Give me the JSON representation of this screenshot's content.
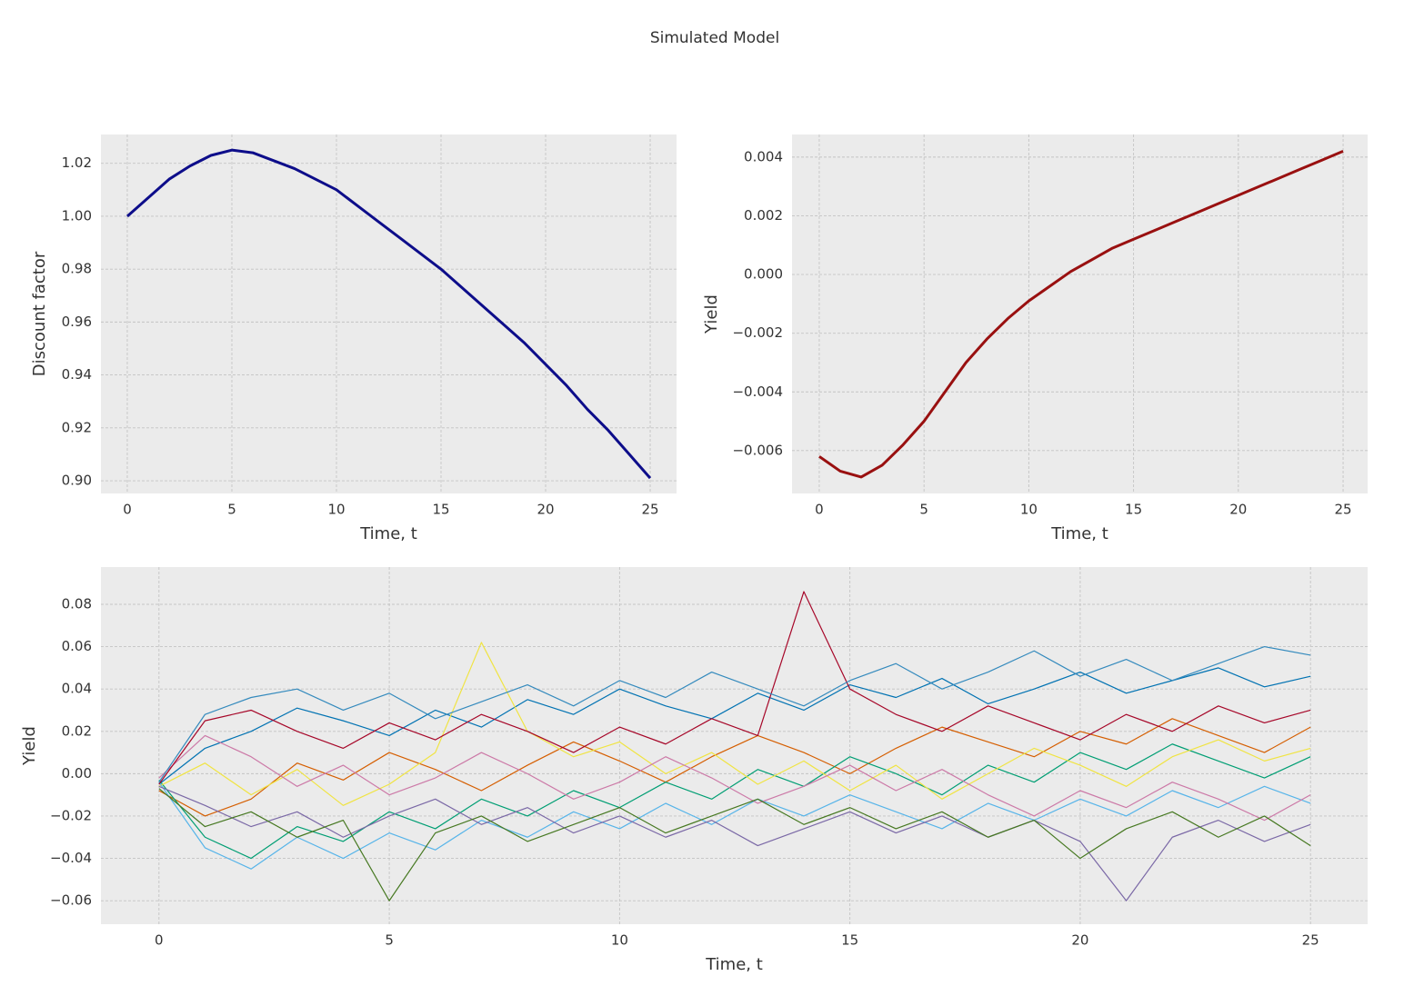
{
  "title": "Simulated Model",
  "chart_data": [
    {
      "type": "line",
      "xlabel": "Time, t",
      "ylabel": "Discount factor",
      "x": [
        0,
        1,
        2,
        3,
        4,
        5,
        6,
        7,
        8,
        9,
        10,
        11,
        12,
        13,
        14,
        15,
        16,
        17,
        18,
        19,
        20,
        21,
        22,
        23,
        24,
        25
      ],
      "values": [
        1.0,
        1.007,
        1.014,
        1.019,
        1.023,
        1.025,
        1.024,
        1.021,
        1.018,
        1.014,
        1.01,
        1.004,
        0.998,
        0.992,
        0.986,
        0.98,
        0.973,
        0.966,
        0.959,
        0.952,
        0.944,
        0.936,
        0.927,
        0.919,
        0.91,
        0.901
      ],
      "color": "#0d0d8a",
      "grid": true,
      "xlim": [
        -1.26,
        26.26
      ],
      "xticks": [
        0,
        5,
        10,
        15,
        20,
        25
      ],
      "ylim": [
        0.8952,
        1.0309
      ],
      "yticks": [
        {
          "value": 0.9,
          "label": "0.90"
        },
        0.92,
        0.94,
        0.96,
        0.98,
        {
          "value": 1.0,
          "label": "1.00"
        },
        1.02
      ]
    },
    {
      "type": "line",
      "xlabel": "Time, t",
      "ylabel": "Yield",
      "x": [
        0,
        1,
        2,
        3,
        4,
        5,
        6,
        7,
        8,
        9,
        10,
        11,
        12,
        13,
        14,
        15,
        16,
        17,
        18,
        19,
        20,
        21,
        22,
        23,
        24,
        25
      ],
      "values": [
        -0.0062,
        -0.0067,
        -0.0069,
        -0.0065,
        -0.0058,
        -0.005,
        -0.004,
        -0.003,
        -0.0022,
        -0.0015,
        -0.0009,
        -0.0004,
        0.0001,
        0.0005,
        0.0009,
        0.0012,
        0.0015,
        0.0018,
        0.0021,
        0.0024,
        0.0027,
        0.003,
        0.0033,
        0.0036,
        0.0039,
        0.0042
      ],
      "color": "#991010",
      "grid": true,
      "xlim": [
        -1.3,
        26.17
      ],
      "xticks": [
        0,
        5,
        10,
        15,
        20,
        25
      ],
      "ylim": [
        -0.00746,
        0.00477
      ],
      "yticks": [
        {
          "value": -0.006,
          "label": "−0.006"
        },
        {
          "value": -0.004,
          "label": "−0.004"
        },
        {
          "value": -0.002,
          "label": "−0.002"
        },
        {
          "value": 0,
          "label": "0.000"
        },
        0.002,
        0.004
      ]
    },
    {
      "type": "multiline",
      "xlabel": "Time, t",
      "ylabel": "Yield",
      "x": [
        0,
        1,
        2,
        3,
        4,
        5,
        6,
        7,
        8,
        9,
        10,
        11,
        12,
        13,
        14,
        15,
        16,
        17,
        18,
        19,
        20,
        21,
        22,
        23,
        24,
        25
      ],
      "series": [
        {
          "color": "#0072B2",
          "values": [
            -0.005,
            0.012,
            0.02,
            0.031,
            0.025,
            0.018,
            0.03,
            0.022,
            0.035,
            0.028,
            0.04,
            0.032,
            0.026,
            0.038,
            0.03,
            0.042,
            0.036,
            0.045,
            0.033,
            0.04,
            0.048,
            0.038,
            0.044,
            0.05,
            0.041,
            0.046
          ]
        },
        {
          "color": "#D55E00",
          "values": [
            -0.008,
            -0.02,
            -0.012,
            0.005,
            -0.003,
            0.01,
            0.002,
            -0.008,
            0.004,
            0.015,
            0.006,
            -0.004,
            0.008,
            0.018,
            0.01,
            0.0,
            0.012,
            0.022,
            0.015,
            0.008,
            0.02,
            0.014,
            0.026,
            0.018,
            0.01,
            0.022
          ]
        },
        {
          "color": "#009E73",
          "values": [
            -0.003,
            -0.03,
            -0.04,
            -0.025,
            -0.032,
            -0.018,
            -0.026,
            -0.012,
            -0.02,
            -0.008,
            -0.016,
            -0.004,
            -0.012,
            0.002,
            -0.006,
            0.008,
            0.0,
            -0.01,
            0.004,
            -0.004,
            0.01,
            0.002,
            0.014,
            0.006,
            -0.002,
            0.008
          ]
        },
        {
          "color": "#F0E442",
          "values": [
            -0.006,
            0.005,
            -0.01,
            0.002,
            -0.015,
            -0.005,
            0.01,
            0.062,
            0.02,
            0.008,
            0.015,
            0.0,
            0.01,
            -0.005,
            0.006,
            -0.008,
            0.004,
            -0.012,
            0.0,
            0.012,
            0.004,
            -0.006,
            0.008,
            0.016,
            0.006,
            0.012
          ]
        },
        {
          "color": "#56B4E9",
          "values": [
            -0.004,
            -0.035,
            -0.045,
            -0.03,
            -0.04,
            -0.028,
            -0.036,
            -0.022,
            -0.03,
            -0.018,
            -0.026,
            -0.014,
            -0.024,
            -0.012,
            -0.02,
            -0.01,
            -0.018,
            -0.026,
            -0.014,
            -0.022,
            -0.012,
            -0.02,
            -0.008,
            -0.016,
            -0.006,
            -0.014
          ]
        },
        {
          "color": "#CC79A7",
          "values": [
            -0.002,
            0.018,
            0.008,
            -0.006,
            0.004,
            -0.01,
            -0.002,
            0.01,
            0.0,
            -0.012,
            -0.004,
            0.008,
            -0.002,
            -0.014,
            -0.006,
            0.004,
            -0.008,
            0.002,
            -0.01,
            -0.02,
            -0.008,
            -0.016,
            -0.004,
            -0.012,
            -0.022,
            -0.01
          ]
        },
        {
          "color": "#A60628",
          "values": [
            -0.005,
            0.025,
            0.03,
            0.02,
            0.012,
            0.024,
            0.016,
            0.028,
            0.02,
            0.01,
            0.022,
            0.014,
            0.026,
            0.018,
            0.086,
            0.04,
            0.028,
            0.02,
            0.032,
            0.024,
            0.016,
            0.028,
            0.02,
            0.032,
            0.024,
            0.03
          ]
        },
        {
          "color": "#7A68A6",
          "values": [
            -0.006,
            -0.015,
            -0.025,
            -0.018,
            -0.03,
            -0.02,
            -0.012,
            -0.024,
            -0.016,
            -0.028,
            -0.02,
            -0.03,
            -0.022,
            -0.034,
            -0.026,
            -0.018,
            -0.028,
            -0.02,
            -0.03,
            -0.022,
            -0.032,
            -0.06,
            -0.03,
            -0.022,
            -0.032,
            -0.024
          ]
        },
        {
          "color": "#467821",
          "values": [
            -0.007,
            -0.025,
            -0.018,
            -0.03,
            -0.022,
            -0.06,
            -0.028,
            -0.02,
            -0.032,
            -0.024,
            -0.016,
            -0.028,
            -0.02,
            -0.012,
            -0.024,
            -0.016,
            -0.026,
            -0.018,
            -0.03,
            -0.022,
            -0.04,
            -0.026,
            -0.018,
            -0.03,
            -0.02,
            -0.034
          ]
        },
        {
          "color": "#348ABD",
          "values": [
            -0.004,
            0.028,
            0.036,
            0.04,
            0.03,
            0.038,
            0.026,
            0.034,
            0.042,
            0.032,
            0.044,
            0.036,
            0.048,
            0.04,
            0.032,
            0.044,
            0.052,
            0.04,
            0.048,
            0.058,
            0.046,
            0.054,
            0.044,
            0.052,
            0.06,
            0.056
          ]
        }
      ],
      "grid": true,
      "xlim": [
        -1.26,
        26.24
      ],
      "xticks": [
        0,
        5,
        10,
        15,
        20,
        25
      ],
      "ylim": [
        -0.0711,
        0.0976
      ],
      "yticks": [
        {
          "value": -0.06,
          "label": "−0.06"
        },
        {
          "value": -0.04,
          "label": "−0.04"
        },
        {
          "value": -0.02,
          "label": "−0.02"
        },
        {
          "value": 0,
          "label": "0.00"
        },
        0.02,
        0.04,
        0.06,
        0.08
      ]
    }
  ]
}
